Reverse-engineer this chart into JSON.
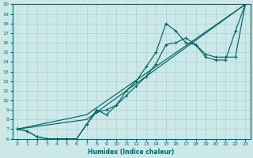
{
  "xlabel": "Humidex (Indice chaleur)",
  "bg_color": "#cce8e8",
  "grid_color": "#aad0d0",
  "line_color": "#006666",
  "xlim": [
    -0.5,
    23.5
  ],
  "ylim": [
    6,
    20
  ],
  "xticks": [
    0,
    1,
    2,
    3,
    4,
    5,
    6,
    7,
    8,
    9,
    10,
    11,
    12,
    13,
    14,
    15,
    16,
    17,
    18,
    19,
    20,
    21,
    22,
    23
  ],
  "yticks": [
    6,
    7,
    8,
    9,
    10,
    11,
    12,
    13,
    14,
    15,
    16,
    17,
    18,
    19,
    20
  ],
  "line1_x": [
    0,
    1,
    2,
    3,
    4,
    5,
    6,
    7,
    8,
    9,
    10,
    11,
    12,
    13,
    14,
    15,
    16,
    17,
    18,
    19,
    20,
    21,
    22,
    23
  ],
  "line1_y": [
    7.0,
    6.8,
    6.2,
    6.0,
    6.0,
    6.0,
    6.0,
    7.5,
    9.0,
    8.5,
    9.5,
    11.0,
    12.0,
    13.5,
    15.0,
    18.0,
    17.2,
    16.0,
    15.8,
    14.5,
    14.2,
    14.2,
    17.2,
    20.0
  ],
  "line2_x": [
    0,
    1,
    2,
    3,
    4,
    5,
    6,
    7,
    8,
    9,
    10,
    11,
    12,
    13,
    14,
    15,
    16,
    17,
    18,
    19,
    20,
    21,
    22,
    23
  ],
  "line2_y": [
    7.0,
    6.8,
    6.2,
    6.0,
    6.0,
    6.0,
    6.0,
    7.5,
    8.8,
    9.0,
    9.5,
    10.5,
    11.5,
    12.5,
    13.8,
    15.8,
    16.0,
    16.5,
    15.8,
    14.8,
    14.5,
    14.5,
    14.5,
    20.0
  ],
  "line3_x": [
    0,
    7,
    23
  ],
  "line3_y": [
    7.0,
    8.5,
    20.0
  ],
  "line4_x": [
    0,
    7,
    23
  ],
  "line4_y": [
    7.0,
    8.0,
    20.0
  ]
}
